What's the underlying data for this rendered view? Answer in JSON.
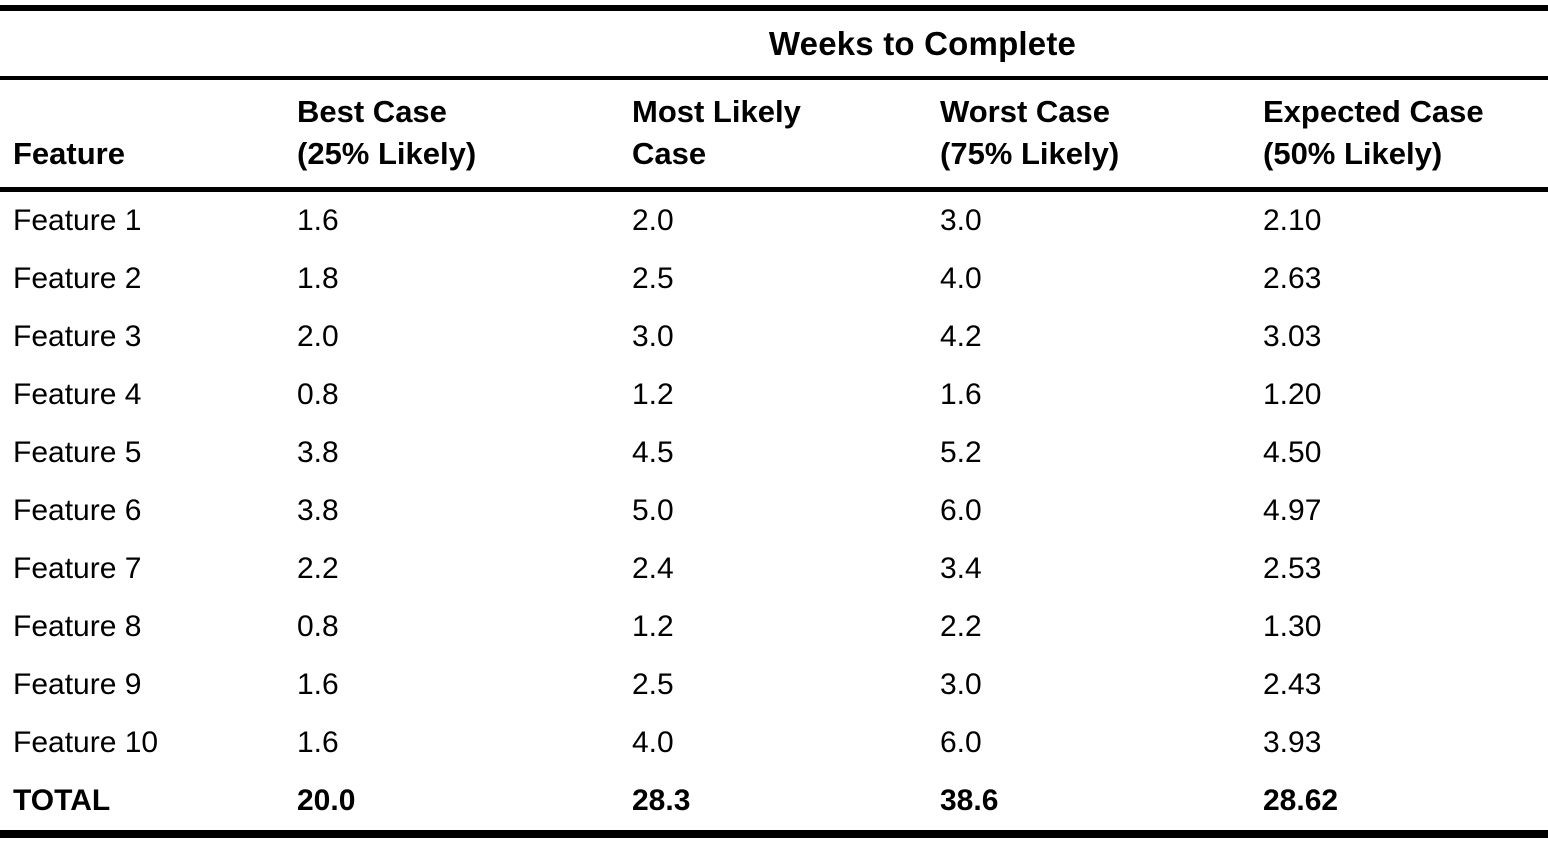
{
  "colors": {
    "text": "#000000",
    "background": "#ffffff"
  },
  "table": {
    "spanning_header": "Weeks to Complete",
    "columns": {
      "feature": {
        "line1": "Feature",
        "line2": ""
      },
      "best": {
        "line1": "Best Case",
        "line2": "(25% Likely)"
      },
      "likely": {
        "line1": "Most Likely",
        "line2": "Case"
      },
      "worst": {
        "line1": "Worst Case",
        "line2": "(75% Likely)"
      },
      "expected": {
        "line1": "Expected Case",
        "line2": "(50% Likely)"
      }
    },
    "rows": [
      {
        "feature": "Feature 1",
        "best": "1.6",
        "likely": "2.0",
        "worst": "3.0",
        "expected": "2.10"
      },
      {
        "feature": "Feature 2",
        "best": "1.8",
        "likely": "2.5",
        "worst": "4.0",
        "expected": "2.63"
      },
      {
        "feature": "Feature 3",
        "best": "2.0",
        "likely": "3.0",
        "worst": "4.2",
        "expected": "3.03"
      },
      {
        "feature": "Feature 4",
        "best": "0.8",
        "likely": "1.2",
        "worst": "1.6",
        "expected": "1.20"
      },
      {
        "feature": "Feature 5",
        "best": "3.8",
        "likely": "4.5",
        "worst": "5.2",
        "expected": "4.50"
      },
      {
        "feature": "Feature 6",
        "best": "3.8",
        "likely": "5.0",
        "worst": "6.0",
        "expected": "4.97"
      },
      {
        "feature": "Feature 7",
        "best": "2.2",
        "likely": "2.4",
        "worst": "3.4",
        "expected": "2.53"
      },
      {
        "feature": "Feature 8",
        "best": "0.8",
        "likely": "1.2",
        "worst": "2.2",
        "expected": "1.30"
      },
      {
        "feature": "Feature 9",
        "best": "1.6",
        "likely": "2.5",
        "worst": "3.0",
        "expected": "2.43"
      },
      {
        "feature": "Feature 10",
        "best": "1.6",
        "likely": "4.0",
        "worst": "6.0",
        "expected": "3.93"
      }
    ],
    "total": {
      "feature": "TOTAL",
      "best": "20.0",
      "likely": "28.3",
      "worst": "38.6",
      "expected": "28.62"
    }
  }
}
